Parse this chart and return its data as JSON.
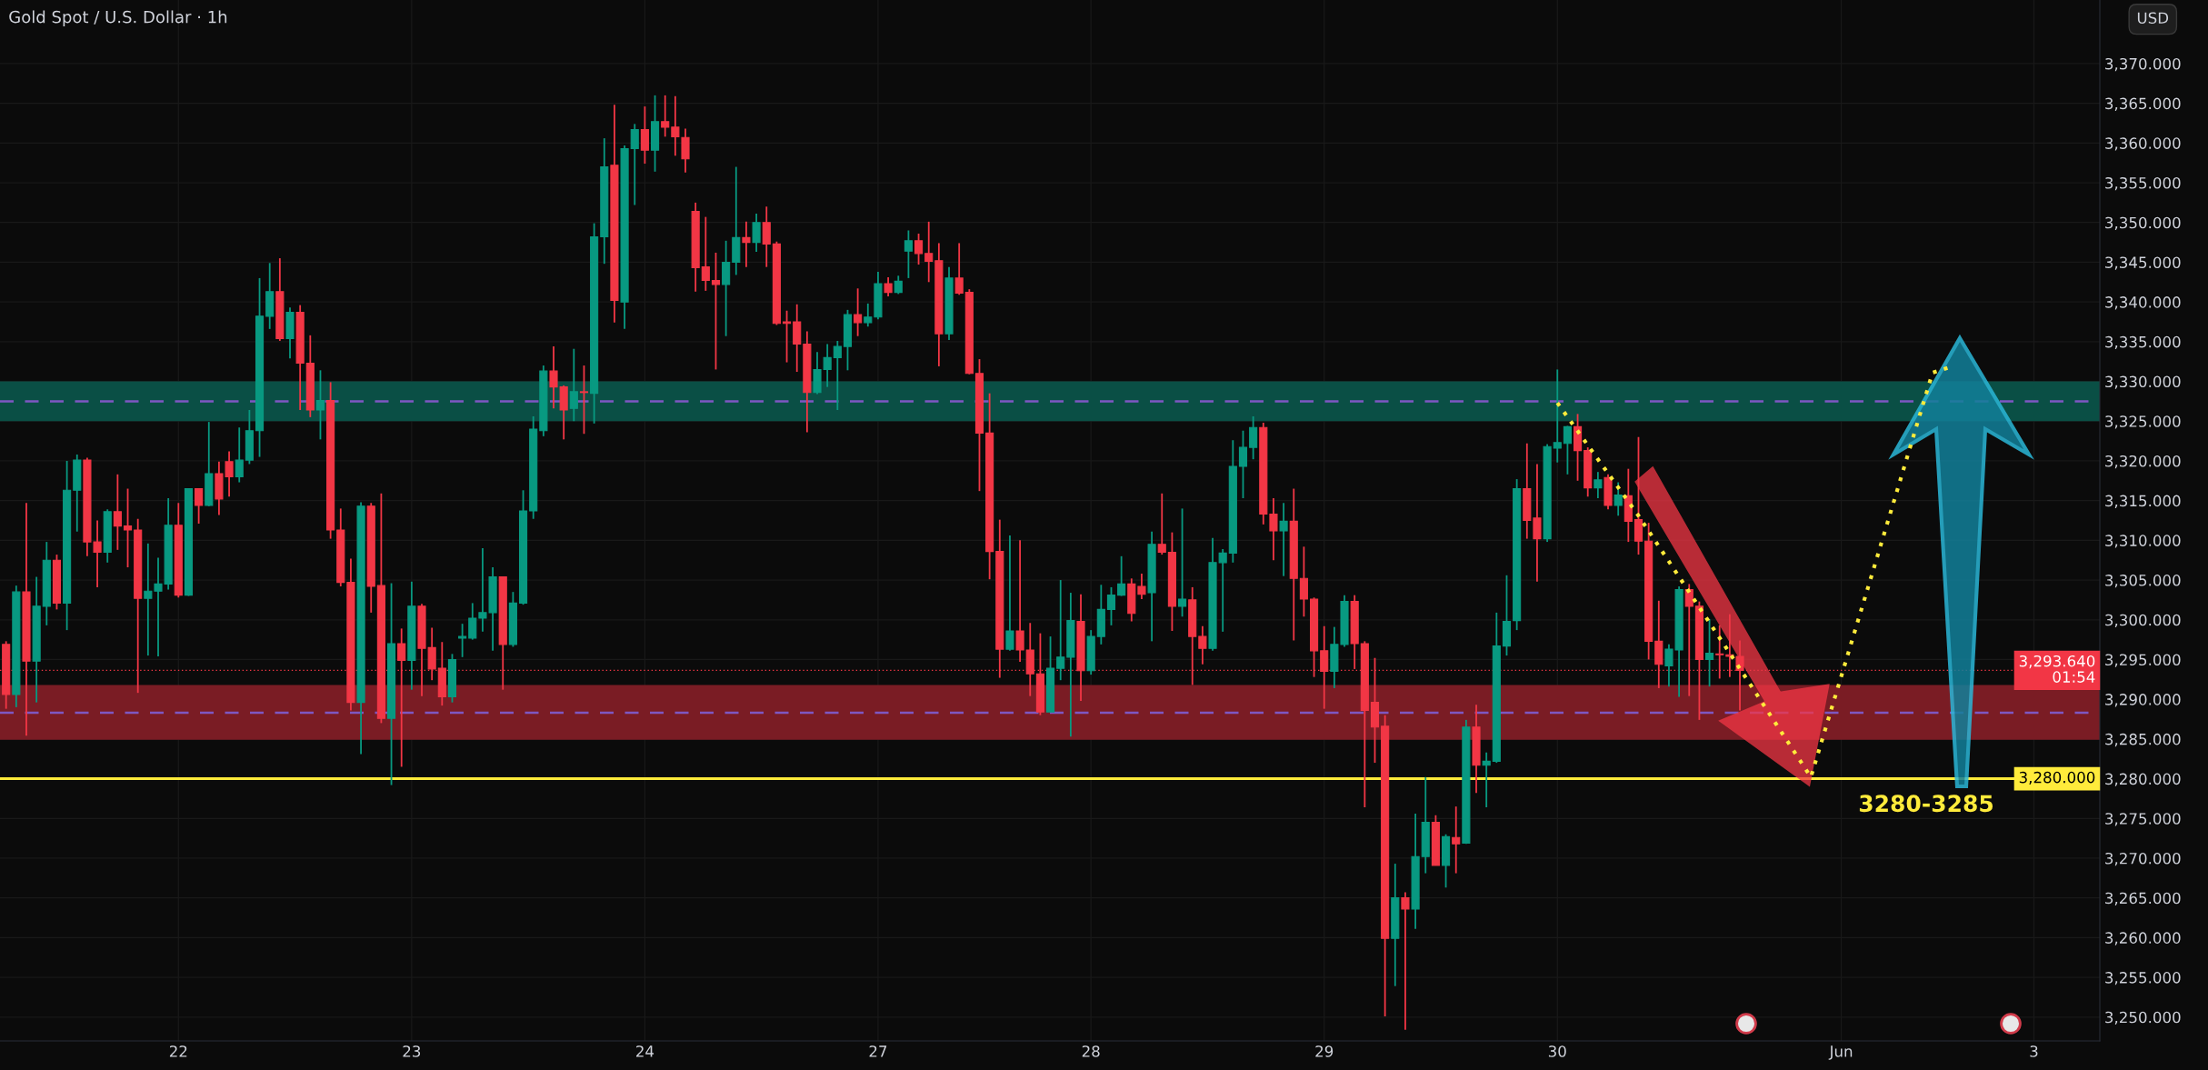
{
  "chart_data": {
    "type": "candlestick",
    "title": "Gold Spot / U.S. Dollar · 1h",
    "categories": [
      null,
      null,
      null,
      null,
      null,
      null,
      null,
      null,
      null,
      null,
      null,
      null,
      null,
      null,
      null,
      null,
      null,
      "22",
      null,
      null,
      null,
      null,
      null,
      null,
      null,
      null,
      null,
      null,
      null,
      null,
      null,
      null,
      null,
      null,
      null,
      null,
      null,
      null,
      null,
      null,
      "23",
      null,
      null,
      null,
      null,
      null,
      null,
      null,
      null,
      null,
      null,
      null,
      null,
      null,
      null,
      null,
      null,
      null,
      null,
      null,
      null,
      null,
      null,
      "24",
      null,
      null,
      null,
      null,
      null,
      null,
      null,
      null,
      null,
      null,
      null,
      null,
      null,
      null,
      null,
      null,
      null,
      null,
      null,
      null,
      null,
      null,
      "27",
      null,
      null,
      null,
      null,
      null,
      null,
      null,
      null,
      null,
      null,
      null,
      null,
      null,
      null,
      null,
      null,
      null,
      null,
      null,
      null,
      "28",
      null,
      null,
      null,
      null,
      null,
      null,
      null,
      null,
      null,
      null,
      null,
      null,
      null,
      null,
      null,
      null,
      null,
      null,
      null,
      null,
      null,
      null,
      "29",
      null,
      null,
      null,
      null,
      null,
      null,
      null,
      null,
      null,
      null,
      null,
      null,
      null,
      null,
      null,
      null,
      null,
      null,
      null,
      null,
      null,
      null,
      "30",
      null,
      null,
      null,
      null,
      null,
      null,
      null,
      null,
      null,
      null,
      null,
      null,
      null,
      null,
      null,
      null,
      null,
      null,
      null,
      null,
      null,
      null,
      null,
      null,
      null,
      null,
      null,
      "Jun",
      null,
      null,
      null,
      null,
      null,
      null,
      null,
      null,
      null,
      null,
      null,
      null,
      null,
      null,
      null,
      null,
      null,
      null,
      "3",
      null,
      null,
      null,
      null,
      null,
      null
    ],
    "ohlc": [
      [
        3296.9,
        3297.3,
        3288.8,
        3290.6
      ],
      [
        3290.6,
        3304.3,
        3289.0,
        3303.5
      ],
      [
        3303.5,
        3314.7,
        3285.4,
        3294.8
      ],
      [
        3294.8,
        3305.4,
        3289.6,
        3301.7
      ],
      [
        3301.7,
        3309.8,
        3299.3,
        3307.5
      ],
      [
        3307.5,
        3308.2,
        3301.3,
        3302.1
      ],
      [
        3302.1,
        3320.0,
        3298.7,
        3316.3
      ],
      [
        3316.3,
        3320.8,
        3311.1,
        3320.1
      ],
      [
        3320.1,
        3320.4,
        3308.0,
        3309.8
      ],
      [
        3309.8,
        3312.5,
        3304.1,
        3308.5
      ],
      [
        3308.5,
        3313.9,
        3307.2,
        3313.6
      ],
      [
        3313.6,
        3318.3,
        3308.8,
        3311.8
      ],
      [
        3311.8,
        3316.5,
        3306.6,
        3311.3
      ],
      [
        3311.3,
        3312.7,
        3290.8,
        3302.7
      ],
      [
        3302.7,
        3309.6,
        3295.5,
        3303.6
      ],
      [
        3303.6,
        3307.8,
        3295.4,
        3304.5
      ],
      [
        3304.5,
        3315.3,
        3303.8,
        3311.9
      ],
      [
        3311.9,
        3314.7,
        3302.8,
        3303.1
      ],
      [
        3303.1,
        3316.5,
        3303.0,
        3316.5
      ],
      [
        3316.5,
        3316.5,
        3312.1,
        3314.4
      ],
      [
        3314.4,
        3324.9,
        3314.3,
        3318.4
      ],
      [
        3318.4,
        3319.9,
        3313.2,
        3315.2
      ],
      [
        3319.9,
        3321.2,
        3315.5,
        3318.0
      ],
      [
        3318.0,
        3324.2,
        3317.3,
        3320.1
      ],
      [
        3320.1,
        3326.4,
        3319.6,
        3323.8
      ],
      [
        3323.8,
        3343.0,
        3320.5,
        3338.2
      ],
      [
        3338.2,
        3344.9,
        3336.6,
        3341.3
      ],
      [
        3341.3,
        3345.5,
        3335.1,
        3335.4
      ],
      [
        3335.4,
        3339.3,
        3332.9,
        3338.7
      ],
      [
        3338.7,
        3339.6,
        3326.4,
        3332.3
      ],
      [
        3332.3,
        3335.8,
        3325.5,
        3326.4
      ],
      [
        3326.4,
        3331.4,
        3322.7,
        3327.6
      ],
      [
        3327.6,
        3329.9,
        3310.2,
        3311.3
      ],
      [
        3311.3,
        3314.0,
        3304.2,
        3304.7
      ],
      [
        3304.7,
        3307.7,
        3288.6,
        3289.6
      ],
      [
        3289.6,
        3314.8,
        3283.1,
        3314.3
      ],
      [
        3314.3,
        3314.7,
        3300.9,
        3304.2
      ],
      [
        3304.3,
        3315.9,
        3287.0,
        3287.6
      ],
      [
        3287.6,
        3304.6,
        3279.2,
        3297.0
      ],
      [
        3297.0,
        3298.9,
        3281.5,
        3294.9
      ],
      [
        3294.9,
        3304.8,
        3291.2,
        3301.7
      ],
      [
        3301.7,
        3302.0,
        3290.4,
        3296.4
      ],
      [
        3296.5,
        3299.0,
        3292.4,
        3293.8
      ],
      [
        3293.9,
        3297.2,
        3289.2,
        3290.3
      ],
      [
        3290.3,
        3295.7,
        3289.6,
        3295.0
      ],
      [
        3297.7,
        3299.5,
        3295.3,
        3297.9
      ],
      [
        3297.7,
        3302.1,
        3297.5,
        3300.2
      ],
      [
        3300.2,
        3309.0,
        3298.5,
        3300.9
      ],
      [
        3300.9,
        3306.6,
        3296.1,
        3305.4
      ],
      [
        3305.4,
        3305.4,
        3291.2,
        3296.9
      ],
      [
        3296.9,
        3303.5,
        3296.6,
        3302.1
      ],
      [
        3302.1,
        3316.3,
        3301.9,
        3313.7
      ],
      [
        3313.7,
        3325.6,
        3312.7,
        3324.0
      ],
      [
        3323.8,
        3332.0,
        3323.1,
        3331.3
      ],
      [
        3331.3,
        3334.4,
        3326.6,
        3329.3
      ],
      [
        3329.3,
        3329.5,
        3322.7,
        3326.4
      ],
      [
        3326.6,
        3334.1,
        3325.0,
        3328.7
      ],
      [
        3328.7,
        3332.0,
        3323.4,
        3328.6
      ],
      [
        3328.5,
        3349.9,
        3324.7,
        3348.2
      ],
      [
        3348.2,
        3360.6,
        3344.8,
        3357.0
      ],
      [
        3357.2,
        3364.8,
        3337.4,
        3340.2
      ],
      [
        3340.0,
        3359.7,
        3336.6,
        3359.3
      ],
      [
        3359.3,
        3362.4,
        3352.2,
        3361.7
      ],
      [
        3361.7,
        3364.6,
        3357.4,
        3359.1
      ],
      [
        3359.1,
        3366.0,
        3356.4,
        3362.7
      ],
      [
        3362.7,
        3366.0,
        3360.8,
        3362.0
      ],
      [
        3362.0,
        3365.9,
        3358.4,
        3360.8
      ],
      [
        3360.7,
        3361.8,
        3356.3,
        3358.0
      ],
      [
        3351.4,
        3352.5,
        3341.3,
        3344.3
      ],
      [
        3344.4,
        3350.7,
        3341.4,
        3342.7
      ],
      [
        3342.7,
        3346.2,
        3331.5,
        3342.2
      ],
      [
        3342.2,
        3347.7,
        3335.7,
        3345.0
      ],
      [
        3345.0,
        3357.0,
        3343.4,
        3348.1
      ],
      [
        3348.1,
        3350.1,
        3344.4,
        3347.5
      ],
      [
        3347.5,
        3351.1,
        3346.3,
        3350.0
      ],
      [
        3350.0,
        3352.0,
        3344.4,
        3347.3
      ],
      [
        3347.3,
        3347.6,
        3337.1,
        3337.3
      ],
      [
        3337.5,
        3338.9,
        3332.4,
        3337.3
      ],
      [
        3337.5,
        3339.7,
        3331.2,
        3334.7
      ],
      [
        3334.7,
        3336.3,
        3323.6,
        3328.6
      ],
      [
        3328.6,
        3333.7,
        3328.4,
        3331.5
      ],
      [
        3331.5,
        3334.7,
        3329.3,
        3333.0
      ],
      [
        3333.0,
        3335.1,
        3326.4,
        3334.4
      ],
      [
        3334.4,
        3339.0,
        3331.4,
        3338.4
      ],
      [
        3338.4,
        3341.7,
        3335.7,
        3337.4
      ],
      [
        3337.4,
        3339.8,
        3336.9,
        3338.1
      ],
      [
        3338.1,
        3343.8,
        3337.8,
        3342.3
      ],
      [
        3342.3,
        3343.1,
        3340.7,
        3341.2
      ],
      [
        3341.2,
        3343.3,
        3341.0,
        3342.6
      ],
      [
        3346.4,
        3349.0,
        3343.0,
        3347.7
      ],
      [
        3347.7,
        3348.6,
        3344.7,
        3346.1
      ],
      [
        3346.1,
        3350.1,
        3342.5,
        3345.1
      ],
      [
        3345.2,
        3347.4,
        3331.9,
        3336.0
      ],
      [
        3336.0,
        3344.4,
        3335.2,
        3343.0
      ],
      [
        3343.0,
        3347.4,
        3340.9,
        3341.1
      ],
      [
        3341.2,
        3341.6,
        3330.9,
        3331.0
      ],
      [
        3331.0,
        3332.8,
        3316.2,
        3323.5
      ],
      [
        3323.5,
        3328.5,
        3305.1,
        3308.6
      ],
      [
        3308.6,
        3312.6,
        3292.7,
        3296.3
      ],
      [
        3296.3,
        3310.6,
        3296.1,
        3298.6
      ],
      [
        3298.6,
        3310.0,
        3294.7,
        3296.2
      ],
      [
        3296.2,
        3299.6,
        3290.4,
        3293.2
      ],
      [
        3293.2,
        3298.3,
        3288.0,
        3288.4
      ],
      [
        3288.4,
        3297.9,
        3288.4,
        3293.9
      ],
      [
        3293.9,
        3305.0,
        3292.4,
        3295.3
      ],
      [
        3295.3,
        3303.4,
        3285.3,
        3299.9
      ],
      [
        3299.8,
        3303.2,
        3289.8,
        3293.6
      ],
      [
        3293.6,
        3298.7,
        3293.1,
        3297.9
      ],
      [
        3297.9,
        3304.4,
        3296.9,
        3301.3
      ],
      [
        3301.3,
        3304.1,
        3299.3,
        3303.1
      ],
      [
        3303.1,
        3308.0,
        3303.0,
        3304.5
      ],
      [
        3304.5,
        3305.2,
        3299.8,
        3300.8
      ],
      [
        3304.2,
        3305.8,
        3302.6,
        3303.2
      ],
      [
        3303.4,
        3311.1,
        3297.3,
        3309.5
      ],
      [
        3309.5,
        3315.9,
        3308.2,
        3308.5
      ],
      [
        3308.5,
        3311.0,
        3298.6,
        3301.7
      ],
      [
        3301.7,
        3314.0,
        3300.4,
        3302.6
      ],
      [
        3302.5,
        3304.1,
        3291.8,
        3297.9
      ],
      [
        3297.9,
        3299.2,
        3294.4,
        3296.4
      ],
      [
        3296.4,
        3310.3,
        3296.1,
        3307.2
      ],
      [
        3307.2,
        3308.9,
        3298.5,
        3308.4
      ],
      [
        3308.4,
        3322.6,
        3307.2,
        3319.3
      ],
      [
        3319.3,
        3323.8,
        3315.3,
        3321.7
      ],
      [
        3321.7,
        3325.6,
        3320.2,
        3324.2
      ],
      [
        3324.2,
        3324.8,
        3312.0,
        3313.3
      ],
      [
        3313.3,
        3315.3,
        3307.5,
        3311.2
      ],
      [
        3311.2,
        3314.7,
        3305.5,
        3312.4
      ],
      [
        3312.4,
        3316.5,
        3297.4,
        3305.2
      ],
      [
        3305.2,
        3309.2,
        3300.4,
        3302.6
      ],
      [
        3302.6,
        3302.8,
        3292.8,
        3296.1
      ],
      [
        3296.1,
        3299.2,
        3288.8,
        3293.5
      ],
      [
        3293.5,
        3299.1,
        3291.4,
        3296.9
      ],
      [
        3296.9,
        3303.1,
        3296.6,
        3302.3
      ],
      [
        3302.3,
        3303.1,
        3293.8,
        3297.0
      ],
      [
        3297.0,
        3297.3,
        3276.4,
        3288.6
      ],
      [
        3289.6,
        3295.2,
        3282.0,
        3286.5
      ],
      [
        3286.6,
        3288.0,
        3250.1,
        3259.9
      ],
      [
        3259.9,
        3269.3,
        3253.9,
        3265.0
      ],
      [
        3265.0,
        3265.7,
        3248.4,
        3263.6
      ],
      [
        3263.6,
        3275.6,
        3261.1,
        3270.2
      ],
      [
        3270.2,
        3280.2,
        3268.1,
        3274.5
      ],
      [
        3274.5,
        3275.4,
        3269.1,
        3269.1
      ],
      [
        3269.1,
        3273.0,
        3266.3,
        3272.7
      ],
      [
        3272.6,
        3276.5,
        3268.1,
        3271.8
      ],
      [
        3271.9,
        3287.4,
        3271.8,
        3286.5
      ],
      [
        3286.5,
        3289.3,
        3278.2,
        3281.7
      ],
      [
        3281.7,
        3283.3,
        3276.4,
        3282.2
      ],
      [
        3282.2,
        3300.9,
        3282.0,
        3296.7
      ],
      [
        3296.7,
        3305.6,
        3295.5,
        3299.8
      ],
      [
        3299.9,
        3317.7,
        3298.7,
        3316.5
      ],
      [
        3316.5,
        3322.2,
        3310.2,
        3312.5
      ],
      [
        3312.8,
        3319.6,
        3304.8,
        3310.2
      ],
      [
        3310.2,
        3322.1,
        3309.8,
        3321.8
      ],
      [
        3321.6,
        3331.5,
        3319.8,
        3322.3
      ],
      [
        3322.2,
        3324.4,
        3318.3,
        3324.3
      ],
      [
        3324.3,
        3325.9,
        3317.5,
        3321.3
      ],
      [
        3321.3,
        3321.7,
        3315.5,
        3316.6
      ],
      [
        3316.6,
        3318.6,
        3315.3,
        3317.6
      ],
      [
        3317.9,
        3318.3,
        3313.9,
        3314.4
      ],
      [
        3314.4,
        3317.3,
        3313.1,
        3315.7
      ],
      [
        3315.6,
        3319.0,
        3309.8,
        3312.4
      ],
      [
        3312.6,
        3323.0,
        3308.2,
        3309.9
      ],
      [
        3309.9,
        3312.2,
        3295.0,
        3297.3
      ],
      [
        3297.3,
        3302.4,
        3291.4,
        3294.4
      ],
      [
        3294.2,
        3296.9,
        3291.6,
        3296.3
      ],
      [
        3296.2,
        3304.2,
        3290.3,
        3303.8
      ],
      [
        3303.8,
        3304.5,
        3290.4,
        3301.7
      ],
      [
        3301.7,
        3302.3,
        3287.4,
        3295.0
      ],
      [
        3295.0,
        3300.1,
        3291.6,
        3295.8
      ],
      [
        3295.7,
        3299.3,
        3292.6,
        3295.6
      ],
      [
        3295.6,
        3300.7,
        3292.8,
        3295.4
      ],
      [
        3295.4,
        3297.4,
        3288.6,
        3293.64
      ],
      null,
      null,
      null,
      null,
      null,
      null,
      null,
      null,
      null,
      null,
      null,
      null,
      null,
      null,
      null,
      null,
      null,
      null,
      null,
      null,
      null,
      null,
      null,
      null,
      null,
      null,
      null,
      null,
      null,
      null,
      null,
      null,
      null,
      null,
      null
    ],
    "colors": [
      "#f23645",
      "#089981",
      "#f23645",
      "#089981",
      "#089981",
      "#f23645",
      "#089981",
      "#089981",
      "#f23645",
      "#f23645",
      "#089981",
      "#f23645",
      "#f23645",
      "#f23645",
      "#089981",
      "#089981",
      "#089981",
      "#f23645",
      "#089981",
      "#f23645",
      "#089981",
      "#f23645",
      "#f23645",
      "#089981",
      "#089981",
      "#089981",
      "#089981",
      "#f23645",
      "#089981",
      "#f23645",
      "#f23645",
      "#089981",
      "#f23645",
      "#f23645",
      "#f23645",
      "#089981",
      "#f23645",
      "#f23645",
      "#089981",
      "#f23645",
      "#089981",
      "#f23645",
      "#f23645",
      "#f23645",
      "#089981",
      "#089981",
      "#089981",
      "#089981",
      "#089981",
      "#f23645",
      "#089981",
      "#089981",
      "#089981",
      "#089981",
      "#f23645",
      "#f23645",
      "#089981",
      "#f23645",
      "#089981",
      "#089981",
      "#f23645",
      "#089981",
      "#089981",
      "#f23645",
      "#089981",
      "#f23645",
      "#f23645",
      "#f23645",
      "#f23645",
      "#f23645",
      "#f23645",
      "#089981",
      "#089981",
      "#f23645",
      "#089981",
      "#f23645",
      "#f23645",
      "#f23645",
      "#f23645",
      "#f23645",
      "#089981",
      "#089981",
      "#089981",
      "#089981",
      "#f23645",
      "#089981",
      "#089981",
      "#f23645",
      "#089981",
      "#089981",
      "#f23645",
      "#f23645",
      "#f23645",
      "#089981",
      "#f23645",
      "#f23645",
      "#f23645",
      "#f23645",
      "#f23645",
      "#089981",
      "#f23645",
      "#f23645",
      "#f23645",
      "#089981",
      "#089981",
      "#089981",
      "#f23645",
      "#089981",
      "#089981",
      "#089981",
      "#089981",
      "#f23645",
      "#f23645",
      "#089981",
      "#f23645",
      "#f23645",
      "#089981",
      "#f23645",
      "#f23645",
      "#089981",
      "#089981",
      "#089981",
      "#089981",
      "#089981",
      "#f23645",
      "#f23645",
      "#089981",
      "#f23645",
      "#f23645",
      "#f23645",
      "#f23645",
      "#089981",
      "#089981",
      "#f23645",
      "#f23645",
      "#f23645",
      "#f23645",
      "#089981",
      "#f23645",
      "#089981",
      "#089981",
      "#f23645",
      "#089981",
      "#f23645",
      "#089981",
      "#f23645",
      "#089981",
      "#089981",
      "#089981",
      "#089981",
      "#f23645",
      "#f23645",
      "#089981",
      "#089981",
      "#089981",
      "#f23645",
      "#f23645",
      "#089981",
      "#f23645",
      "#089981",
      "#f23645",
      "#f23645",
      "#f23645",
      "#f23645",
      "#089981",
      "#089981",
      "#f23645",
      "#f23645",
      "#089981",
      "#f23645",
      "#f23645",
      "#f23645",
      null,
      null,
      null,
      null,
      null,
      null,
      null,
      null,
      null,
      null,
      null,
      null,
      null,
      null,
      null,
      null,
      null,
      null,
      null,
      null,
      null,
      null,
      null,
      null,
      null,
      null,
      null,
      null,
      null,
      null,
      null,
      null,
      null,
      null,
      null
    ],
    "series": [
      {
        "type": "line",
        "color": "#ffeb3b",
        "line_style": "dotted",
        "values": [
          null,
          null,
          null,
          null,
          null,
          null,
          null,
          null,
          null,
          null,
          null,
          null,
          null,
          null,
          null,
          null,
          null,
          null,
          null,
          null,
          null,
          null,
          null,
          null,
          null,
          null,
          null,
          null,
          null,
          null,
          null,
          null,
          null,
          null,
          null,
          null,
          null,
          null,
          null,
          null,
          null,
          null,
          null,
          null,
          null,
          null,
          null,
          null,
          null,
          null,
          null,
          null,
          null,
          null,
          null,
          null,
          null,
          null,
          null,
          null,
          null,
          null,
          null,
          null,
          null,
          null,
          null,
          null,
          null,
          null,
          null,
          null,
          null,
          null,
          null,
          null,
          null,
          null,
          null,
          null,
          null,
          null,
          null,
          null,
          null,
          null,
          null,
          null,
          null,
          null,
          null,
          null,
          null,
          null,
          null,
          null,
          null,
          null,
          null,
          null,
          null,
          null,
          null,
          null,
          null,
          null,
          null,
          null,
          null,
          null,
          null,
          null,
          null,
          null,
          null,
          null,
          null,
          null,
          null,
          null,
          null,
          null,
          null,
          null,
          null,
          null,
          null,
          null,
          null,
          null,
          null,
          null,
          null,
          null,
          null,
          null,
          null,
          null,
          null,
          null,
          null,
          null,
          null,
          null,
          null,
          null,
          null,
          null,
          null,
          null,
          null,
          null,
          null,
          3327.3,
          null,
          null,
          null,
          null,
          null,
          null,
          null,
          3313.1,
          null,
          null,
          null,
          null,
          null,
          null,
          null,
          null,
          3295.8,
          null,
          null,
          null,
          null,
          null,
          null,
          null,
          3280.2,
          null,
          null,
          null,
          null,
          null,
          3305.6,
          null,
          null,
          null,
          null,
          null,
          3331.1,
          null,
          3331.9,
          null,
          null,
          null,
          null,
          null,
          null,
          null,
          null,
          null,
          null,
          null,
          null,
          null,
          null
        ]
      }
    ],
    "ylim": [
      3247,
      3378
    ],
    "yticks": [
      {
        "value": 3250,
        "label": "3,250.000"
      },
      {
        "value": 3255,
        "label": "3,255.000"
      },
      {
        "value": 3260,
        "label": "3,260.000"
      },
      {
        "value": 3265,
        "label": "3,265.000"
      },
      {
        "value": 3270,
        "label": "3,270.000"
      },
      {
        "value": 3275,
        "label": "3,275.000"
      },
      {
        "value": 3280,
        "label": "3,280.000"
      },
      {
        "value": 3285,
        "label": "3,285.000"
      },
      {
        "value": 3290,
        "label": "3,290.000"
      },
      {
        "value": 3295,
        "label": "3,295.000"
      },
      {
        "value": 3300,
        "label": "3,300.000"
      },
      {
        "value": 3305,
        "label": "3,305.000"
      },
      {
        "value": 3310,
        "label": "3,310.000"
      },
      {
        "value": 3315,
        "label": "3,315.000"
      },
      {
        "value": 3320,
        "label": "3,320.000"
      },
      {
        "value": 3325,
        "label": "3,325.000"
      },
      {
        "value": 3330,
        "label": "3,330.000"
      },
      {
        "value": 3335,
        "label": "3,335.000"
      },
      {
        "value": 3340,
        "label": "3,340.000"
      },
      {
        "value": 3345,
        "label": "3,345.000"
      },
      {
        "value": 3350,
        "label": "3,350.000"
      },
      {
        "value": 3355,
        "label": "3,355.000"
      },
      {
        "value": 3360,
        "label": "3,360.000"
      },
      {
        "value": 3365,
        "label": "3,365.000"
      },
      {
        "value": 3370,
        "label": "3,370.000"
      }
    ],
    "grid": true,
    "bands": [
      {
        "axis": "y",
        "from": 3325,
        "to": 3330,
        "color": "#0a4f45"
      },
      {
        "axis": "y",
        "from": 3284.9,
        "to": 3291.8,
        "color": "#7a1c24"
      }
    ],
    "ref_lines": [
      {
        "axis": "y",
        "value": 3293.64,
        "label": "3,293.640\n01:54",
        "color": "#f23645",
        "line_style": "dotted"
      },
      {
        "axis": "y",
        "value": 3280,
        "label": "3,280.000",
        "color": "#ffeb3b",
        "line_style": "solid"
      },
      {
        "axis": "y",
        "value": 3327.5,
        "color": "#7e57c2",
        "line_style": "dashed"
      },
      {
        "axis": "y",
        "value": 3288.3,
        "color": "#7e57c2",
        "line_style": "dashed"
      }
    ],
    "annotations": [
      "USD",
      "3280-3285"
    ]
  }
}
